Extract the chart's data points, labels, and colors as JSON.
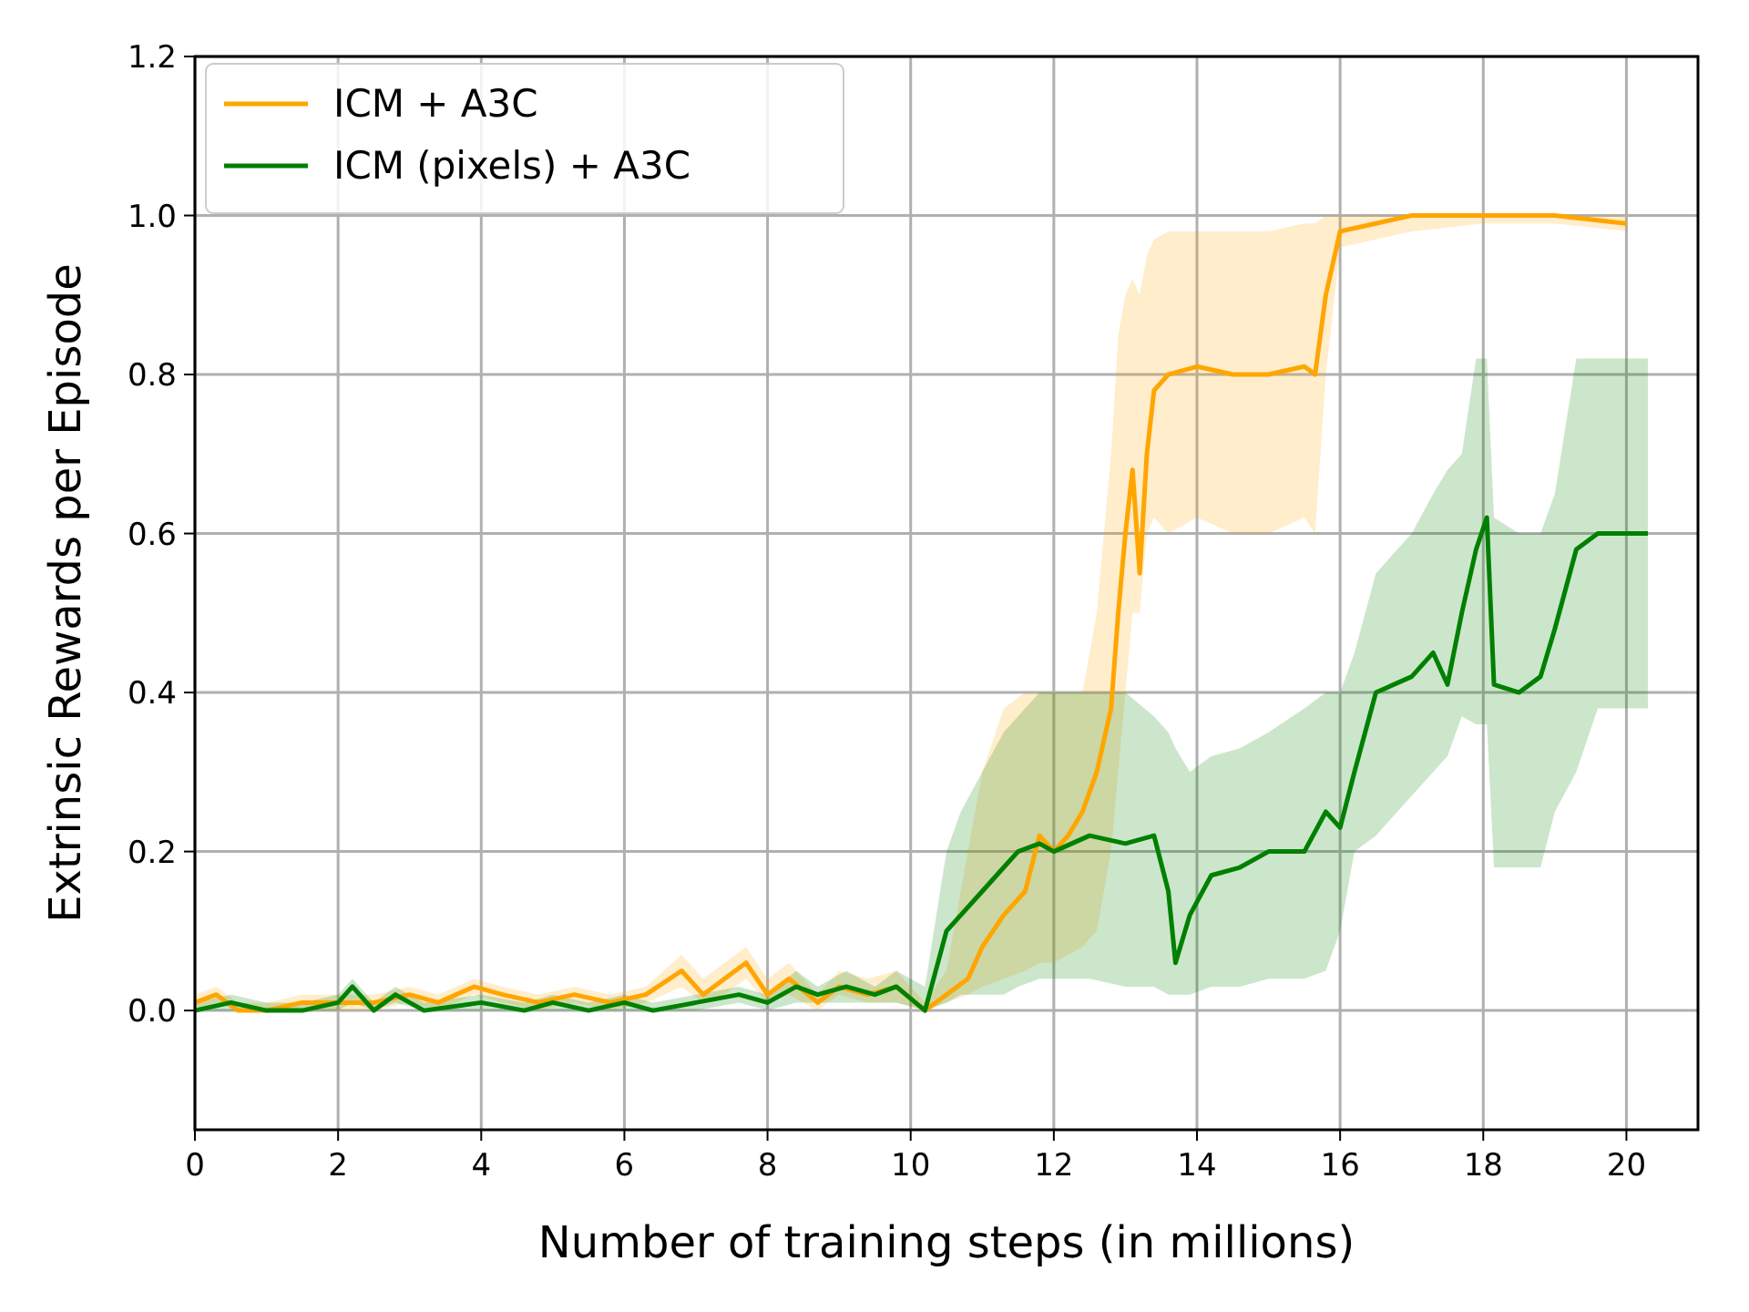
{
  "chart_data": {
    "type": "line",
    "xlabel": "Number of training steps (in millions)",
    "ylabel": "Extrinsic Rewards per Episode",
    "xlim": [
      0,
      21
    ],
    "xticks": [
      0,
      2,
      4,
      6,
      8,
      10,
      12,
      14,
      16,
      18,
      20
    ],
    "ylim": [
      -0.15,
      1.2
    ],
    "yticks": [
      {
        "value": 0,
        "label": "0.0"
      },
      0.2,
      0.4,
      0.6,
      0.8,
      {
        "value": 1,
        "label": "1.0"
      },
      1.2
    ],
    "grid": true,
    "legend": "top left",
    "line_style": "solid",
    "marker": "none",
    "series": [
      {
        "name": "ICM + A3C",
        "color": "#ffa500",
        "x": [
          0,
          0.3,
          0.6,
          1,
          1.5,
          2,
          2.5,
          3,
          3.4,
          3.9,
          4.3,
          4.8,
          5.3,
          5.8,
          6.3,
          6.8,
          7.1,
          7.4,
          7.7,
          8,
          8.3,
          8.7,
          9,
          9.4,
          9.8,
          10.2,
          10.5,
          10.8,
          11,
          11.3,
          11.6,
          11.8,
          12,
          12.2,
          12.4,
          12.6,
          12.8,
          12.9,
          13,
          13.1,
          13.2,
          13.3,
          13.4,
          13.6,
          14,
          14.5,
          15,
          15.5,
          15.65,
          15.8,
          16,
          16.5,
          17,
          18,
          19,
          20
        ],
        "values": [
          0.01,
          0.02,
          0,
          0,
          0.01,
          0.01,
          0.01,
          0.02,
          0.01,
          0.03,
          0.02,
          0.01,
          0.02,
          0.01,
          0.02,
          0.05,
          0.02,
          0.04,
          0.06,
          0.02,
          0.04,
          0.01,
          0.03,
          0.02,
          0.03,
          0,
          0.02,
          0.04,
          0.08,
          0.12,
          0.15,
          0.22,
          0.2,
          0.22,
          0.25,
          0.3,
          0.38,
          0.5,
          0.6,
          0.68,
          0.55,
          0.7,
          0.78,
          0.8,
          0.81,
          0.8,
          0.8,
          0.81,
          0.8,
          0.9,
          0.98,
          0.99,
          1.0,
          1.0,
          1.0,
          0.99
        ],
        "lower": [
          0,
          0.01,
          0,
          0,
          0,
          0,
          0,
          0.01,
          0,
          0.02,
          0.01,
          0,
          0.01,
          0,
          0.01,
          0.03,
          0.01,
          0.02,
          0.04,
          0.01,
          0.02,
          0,
          0.02,
          0.01,
          0.01,
          0,
          0.01,
          0.02,
          0.03,
          0.04,
          0.05,
          0.06,
          0.06,
          0.07,
          0.08,
          0.1,
          0.2,
          0.3,
          0.4,
          0.5,
          0.5,
          0.6,
          0.62,
          0.6,
          0.62,
          0.6,
          0.6,
          0.62,
          0.6,
          0.8,
          0.96,
          0.97,
          0.98,
          0.99,
          0.99,
          0.98
        ],
        "upper": [
          0.02,
          0.03,
          0.01,
          0.01,
          0.02,
          0.02,
          0.02,
          0.03,
          0.02,
          0.04,
          0.03,
          0.02,
          0.03,
          0.02,
          0.03,
          0.07,
          0.04,
          0.06,
          0.08,
          0.04,
          0.06,
          0.02,
          0.05,
          0.04,
          0.05,
          0.01,
          0.05,
          0.2,
          0.3,
          0.38,
          0.4,
          0.4,
          0.4,
          0.4,
          0.4,
          0.5,
          0.7,
          0.85,
          0.9,
          0.92,
          0.9,
          0.95,
          0.97,
          0.98,
          0.98,
          0.98,
          0.98,
          0.99,
          0.99,
          1.0,
          1.0,
          1.0,
          1.0,
          1.0,
          1.0,
          1.0
        ]
      },
      {
        "name": "ICM (pixels) + A3C",
        "color": "#008000",
        "x": [
          0,
          0.5,
          1,
          1.5,
          2,
          2.2,
          2.5,
          2.8,
          3.2,
          4,
          4.6,
          5,
          5.5,
          6,
          6.4,
          7,
          7.6,
          8,
          8.4,
          8.7,
          9.1,
          9.5,
          9.8,
          10.2,
          10.5,
          10.7,
          11,
          11.3,
          11.5,
          11.8,
          12,
          12.5,
          13,
          13.4,
          13.6,
          13.7,
          13.9,
          14.2,
          14.6,
          15,
          15.5,
          15.8,
          16,
          16.2,
          16.5,
          17,
          17.3,
          17.5,
          17.7,
          17.9,
          18.05,
          18.15,
          18.5,
          18.8,
          19,
          19.3,
          19.6,
          20,
          20.3
        ],
        "values": [
          0,
          0.01,
          0,
          0,
          0.01,
          0.03,
          0,
          0.02,
          0,
          0.01,
          0,
          0.01,
          0,
          0.01,
          0,
          0.01,
          0.02,
          0.01,
          0.03,
          0.02,
          0.03,
          0.02,
          0.03,
          0,
          0.1,
          0.12,
          0.15,
          0.18,
          0.2,
          0.21,
          0.2,
          0.22,
          0.21,
          0.22,
          0.15,
          0.06,
          0.12,
          0.17,
          0.18,
          0.2,
          0.2,
          0.25,
          0.23,
          0.3,
          0.4,
          0.42,
          0.45,
          0.41,
          0.5,
          0.58,
          0.62,
          0.41,
          0.4,
          0.42,
          0.48,
          0.58,
          0.6,
          0.6,
          0.6
        ],
        "lower": [
          0,
          0,
          0,
          0,
          0,
          0.01,
          0,
          0.01,
          0,
          0,
          0,
          0,
          0,
          0,
          0,
          0,
          0.01,
          0,
          0.01,
          0.01,
          0.01,
          0.01,
          0.01,
          0,
          0.01,
          0.02,
          0.02,
          0.02,
          0.03,
          0.04,
          0.04,
          0.04,
          0.03,
          0.03,
          0.02,
          0.02,
          0.02,
          0.03,
          0.03,
          0.04,
          0.04,
          0.05,
          0.1,
          0.2,
          0.22,
          0.27,
          0.3,
          0.32,
          0.37,
          0.36,
          0.36,
          0.18,
          0.18,
          0.18,
          0.25,
          0.3,
          0.38,
          0.38,
          0.38
        ],
        "upper": [
          0.01,
          0.02,
          0.01,
          0.01,
          0.02,
          0.04,
          0.01,
          0.03,
          0.01,
          0.02,
          0.01,
          0.02,
          0.01,
          0.02,
          0.01,
          0.02,
          0.03,
          0.02,
          0.05,
          0.03,
          0.05,
          0.03,
          0.05,
          0.03,
          0.2,
          0.25,
          0.3,
          0.35,
          0.37,
          0.4,
          0.4,
          0.4,
          0.4,
          0.37,
          0.35,
          0.33,
          0.3,
          0.32,
          0.33,
          0.35,
          0.38,
          0.4,
          0.4,
          0.45,
          0.55,
          0.6,
          0.65,
          0.68,
          0.7,
          0.82,
          0.82,
          0.62,
          0.6,
          0.6,
          0.65,
          0.82,
          0.82,
          0.82,
          0.82
        ]
      }
    ]
  }
}
